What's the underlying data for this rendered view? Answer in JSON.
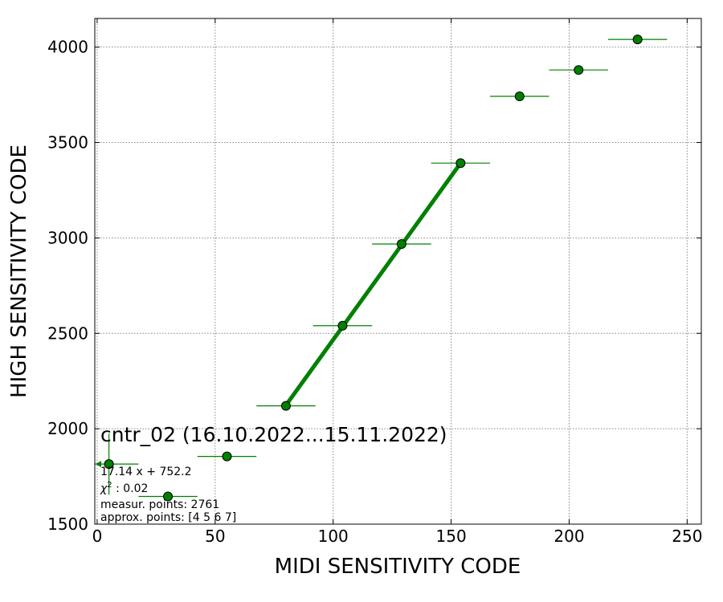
{
  "chart_data": {
    "type": "scatter",
    "xlabel": "MIDI SENSITIVITY CODE",
    "ylabel": "HIGH SENSITIVITY CODE",
    "xlim": [
      -1,
      256
    ],
    "ylim": [
      1500,
      4150
    ],
    "xticks": [
      0,
      50,
      100,
      150,
      200,
      250
    ],
    "yticks": [
      1500,
      2000,
      2500,
      3000,
      3500,
      4000
    ],
    "grid": true,
    "colors": {
      "points": "#008000",
      "fit_line": "#008000",
      "marker_edge": "#000000"
    },
    "series": [
      {
        "points": [
          {
            "x": 5,
            "y": 1815,
            "xerr": 12.5
          },
          {
            "x": 30,
            "y": 1645,
            "xerr": 12.5
          },
          {
            "x": 55,
            "y": 1855,
            "xerr": 12.5
          },
          {
            "x": 80,
            "y": 2120,
            "xerr": 12.5
          },
          {
            "x": 104,
            "y": 2540,
            "xerr": 12.5
          },
          {
            "x": 129,
            "y": 2968,
            "xerr": 12.5
          },
          {
            "x": 154,
            "y": 3392,
            "xerr": 12.5
          },
          {
            "x": 179,
            "y": 3742,
            "xerr": 12.5
          },
          {
            "x": 204,
            "y": 3880,
            "xerr": 12.5
          },
          {
            "x": 229,
            "y": 4040,
            "xerr": 12.5
          }
        ]
      }
    ],
    "fit": {
      "slope": 17.14,
      "intercept": 752.2,
      "x_range": [
        80,
        154
      ]
    },
    "annotation": {
      "title": "cntr_02 (16.10.2022...15.11.2022)",
      "equation": "17.14 x + 752.2",
      "chi_label": "χ",
      "chi_exp": "2",
      "chi_value": " : 0.02",
      "measur_points": "measur. points: 2761",
      "approx_points": "approx. points: [4 5 6 7]"
    }
  }
}
